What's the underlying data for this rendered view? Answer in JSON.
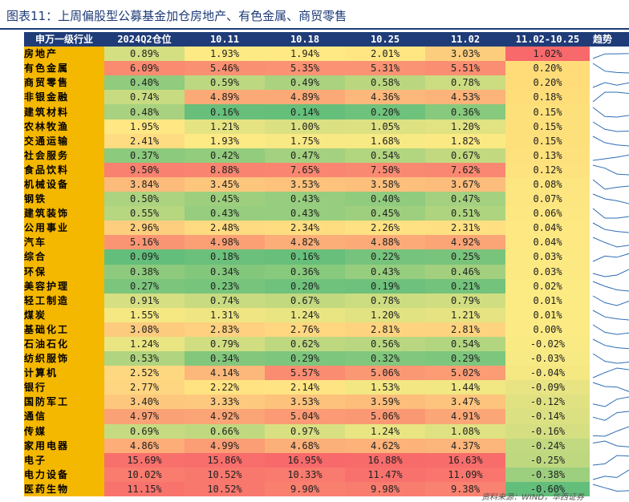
{
  "title": "图表11：上周偏股型公募基金加仓房地产、有色金属、商贸零售",
  "source": "资料来源：WIND，华西证券",
  "chart_data": {
    "type": "table",
    "columns": [
      "申万一级行业",
      "2024Q2仓位",
      "10.11",
      "10.18",
      "10.25",
      "11.02",
      "11.02-10.25",
      "趋势"
    ],
    "rows": [
      {
        "industry": "房地产",
        "q2": "0.89%",
        "d1011": "1.93%",
        "d1018": "1.94%",
        "d1025": "2.01%",
        "d1102": "3.03%",
        "chg": "1.02%"
      },
      {
        "industry": "有色金属",
        "q2": "6.09%",
        "d1011": "5.46%",
        "d1018": "5.35%",
        "d1025": "5.31%",
        "d1102": "5.51%",
        "chg": "0.20%"
      },
      {
        "industry": "商贸零售",
        "q2": "0.40%",
        "d1011": "0.59%",
        "d1018": "0.49%",
        "d1025": "0.58%",
        "d1102": "0.78%",
        "chg": "0.20%"
      },
      {
        "industry": "非银金融",
        "q2": "0.74%",
        "d1011": "4.89%",
        "d1018": "4.89%",
        "d1025": "4.36%",
        "d1102": "4.53%",
        "chg": "0.18%"
      },
      {
        "industry": "建筑材料",
        "q2": "0.48%",
        "d1011": "0.16%",
        "d1018": "0.14%",
        "d1025": "0.20%",
        "d1102": "0.36%",
        "chg": "0.15%"
      },
      {
        "industry": "农林牧渔",
        "q2": "1.95%",
        "d1011": "1.21%",
        "d1018": "1.00%",
        "d1025": "1.05%",
        "d1102": "1.20%",
        "chg": "0.15%"
      },
      {
        "industry": "交通运输",
        "q2": "2.41%",
        "d1011": "1.93%",
        "d1018": "1.75%",
        "d1025": "1.68%",
        "d1102": "1.82%",
        "chg": "0.15%"
      },
      {
        "industry": "社会服务",
        "q2": "0.37%",
        "d1011": "0.42%",
        "d1018": "0.47%",
        "d1025": "0.54%",
        "d1102": "0.67%",
        "chg": "0.13%"
      },
      {
        "industry": "食品饮料",
        "q2": "9.50%",
        "d1011": "8.88%",
        "d1018": "7.65%",
        "d1025": "7.50%",
        "d1102": "7.62%",
        "chg": "0.12%"
      },
      {
        "industry": "机械设备",
        "q2": "3.84%",
        "d1011": "3.45%",
        "d1018": "3.53%",
        "d1025": "3.58%",
        "d1102": "3.67%",
        "chg": "0.08%"
      },
      {
        "industry": "钢铁",
        "q2": "0.50%",
        "d1011": "0.45%",
        "d1018": "0.43%",
        "d1025": "0.40%",
        "d1102": "0.47%",
        "chg": "0.07%"
      },
      {
        "industry": "建筑装饰",
        "q2": "0.55%",
        "d1011": "0.43%",
        "d1018": "0.43%",
        "d1025": "0.45%",
        "d1102": "0.51%",
        "chg": "0.06%"
      },
      {
        "industry": "公用事业",
        "q2": "2.96%",
        "d1011": "2.48%",
        "d1018": "2.34%",
        "d1025": "2.26%",
        "d1102": "2.31%",
        "chg": "0.04%"
      },
      {
        "industry": "汽车",
        "q2": "5.16%",
        "d1011": "4.98%",
        "d1018": "4.82%",
        "d1025": "4.88%",
        "d1102": "4.92%",
        "chg": "0.04%"
      },
      {
        "industry": "综合",
        "q2": "0.09%",
        "d1011": "0.18%",
        "d1018": "0.16%",
        "d1025": "0.22%",
        "d1102": "0.25%",
        "chg": "0.03%"
      },
      {
        "industry": "环保",
        "q2": "0.38%",
        "d1011": "0.34%",
        "d1018": "0.36%",
        "d1025": "0.43%",
        "d1102": "0.46%",
        "chg": "0.03%"
      },
      {
        "industry": "美容护理",
        "q2": "0.27%",
        "d1011": "0.23%",
        "d1018": "0.20%",
        "d1025": "0.19%",
        "d1102": "0.21%",
        "chg": "0.02%"
      },
      {
        "industry": "轻工制造",
        "q2": "0.91%",
        "d1011": "0.74%",
        "d1018": "0.67%",
        "d1025": "0.78%",
        "d1102": "0.79%",
        "chg": "0.01%"
      },
      {
        "industry": "煤炭",
        "q2": "1.55%",
        "d1011": "1.31%",
        "d1018": "1.24%",
        "d1025": "1.20%",
        "d1102": "1.21%",
        "chg": "0.01%"
      },
      {
        "industry": "基础化工",
        "q2": "3.08%",
        "d1011": "2.83%",
        "d1018": "2.76%",
        "d1025": "2.81%",
        "d1102": "2.81%",
        "chg": "0.00%"
      },
      {
        "industry": "石油石化",
        "q2": "1.24%",
        "d1011": "0.79%",
        "d1018": "0.62%",
        "d1025": "0.56%",
        "d1102": "0.54%",
        "chg": "-0.02%"
      },
      {
        "industry": "纺织服饰",
        "q2": "0.53%",
        "d1011": "0.34%",
        "d1018": "0.29%",
        "d1025": "0.32%",
        "d1102": "0.29%",
        "chg": "-0.03%"
      },
      {
        "industry": "计算机",
        "q2": "2.52%",
        "d1011": "4.14%",
        "d1018": "5.57%",
        "d1025": "5.06%",
        "d1102": "5.02%",
        "chg": "-0.04%"
      },
      {
        "industry": "银行",
        "q2": "2.77%",
        "d1011": "2.22%",
        "d1018": "2.14%",
        "d1025": "1.53%",
        "d1102": "1.44%",
        "chg": "-0.09%"
      },
      {
        "industry": "国防军工",
        "q2": "3.40%",
        "d1011": "3.33%",
        "d1018": "3.53%",
        "d1025": "3.59%",
        "d1102": "3.47%",
        "chg": "-0.12%"
      },
      {
        "industry": "通信",
        "q2": "4.97%",
        "d1011": "4.92%",
        "d1018": "5.04%",
        "d1025": "5.06%",
        "d1102": "4.91%",
        "chg": "-0.14%"
      },
      {
        "industry": "传媒",
        "q2": "0.69%",
        "d1011": "0.66%",
        "d1018": "0.97%",
        "d1025": "1.24%",
        "d1102": "1.08%",
        "chg": "-0.16%"
      },
      {
        "industry": "家用电器",
        "q2": "4.86%",
        "d1011": "4.99%",
        "d1018": "4.68%",
        "d1025": "4.62%",
        "d1102": "4.37%",
        "chg": "-0.24%"
      },
      {
        "industry": "电子",
        "q2": "15.69%",
        "d1011": "15.86%",
        "d1018": "16.95%",
        "d1025": "16.88%",
        "d1102": "16.63%",
        "chg": "-0.25%"
      },
      {
        "industry": "电力设备",
        "q2": "10.02%",
        "d1011": "10.52%",
        "d1018": "10.33%",
        "d1025": "11.47%",
        "d1102": "11.09%",
        "chg": "-0.38%"
      },
      {
        "industry": "医药生物",
        "q2": "11.15%",
        "d1011": "10.52%",
        "d1018": "9.90%",
        "d1025": "9.98%",
        "d1102": "9.38%",
        "chg": "-0.60%"
      }
    ]
  }
}
